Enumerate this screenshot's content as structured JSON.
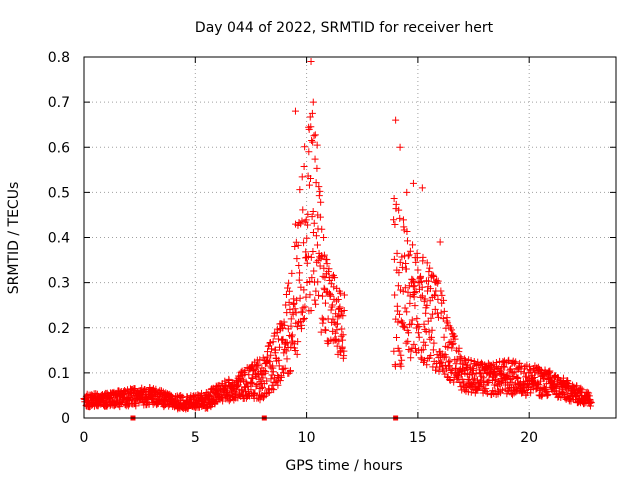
{
  "chart_data": {
    "type": "scatter",
    "title": "Day 044 of 2022, SRMTID for receiver hert",
    "xlabel": "GPS time / hours",
    "ylabel": "SRMTID / TECUs",
    "xlim": [
      0,
      23.9
    ],
    "ylim": [
      0,
      0.8
    ],
    "xticks": [
      0,
      5,
      10,
      15,
      20
    ],
    "xtick_labels": [
      "0",
      "5",
      "10",
      "15",
      "20"
    ],
    "yticks": [
      0,
      0.1,
      0.2,
      0.3,
      0.4,
      0.5,
      0.6,
      0.7,
      0.8
    ],
    "ytick_labels": [
      "0",
      "0.1",
      "0.2",
      "0.3",
      "0.4",
      "0.5",
      "0.6",
      "0.7",
      "0.8"
    ],
    "grid": true,
    "marker": "+",
    "marker_color": "#ff0000",
    "series": [
      {
        "name": "SRMTID",
        "color": "#ff0000",
        "gaps": [
          [
            11.7,
            13.9
          ]
        ],
        "profile": [
          [
            0.0,
            0.04,
            0.015
          ],
          [
            1.0,
            0.04,
            0.015
          ],
          [
            2.0,
            0.045,
            0.02
          ],
          [
            3.0,
            0.05,
            0.02
          ],
          [
            4.0,
            0.035,
            0.015
          ],
          [
            5.0,
            0.035,
            0.015
          ],
          [
            5.6,
            0.04,
            0.02
          ],
          [
            6.0,
            0.055,
            0.02
          ],
          [
            7.0,
            0.07,
            0.03
          ],
          [
            7.5,
            0.08,
            0.04
          ],
          [
            8.0,
            0.09,
            0.05
          ],
          [
            8.5,
            0.12,
            0.06
          ],
          [
            9.0,
            0.16,
            0.08
          ],
          [
            9.5,
            0.28,
            0.16
          ],
          [
            10.0,
            0.42,
            0.22
          ],
          [
            10.3,
            0.48,
            0.24
          ],
          [
            10.6,
            0.35,
            0.18
          ],
          [
            11.0,
            0.26,
            0.1
          ],
          [
            11.5,
            0.2,
            0.08
          ],
          [
            14.0,
            0.3,
            0.2
          ],
          [
            14.5,
            0.28,
            0.15
          ],
          [
            15.0,
            0.24,
            0.13
          ],
          [
            15.5,
            0.23,
            0.12
          ],
          [
            16.0,
            0.2,
            0.1
          ],
          [
            16.5,
            0.14,
            0.06
          ],
          [
            17.0,
            0.1,
            0.04
          ],
          [
            18.0,
            0.085,
            0.035
          ],
          [
            19.0,
            0.09,
            0.04
          ],
          [
            20.0,
            0.085,
            0.035
          ],
          [
            21.0,
            0.075,
            0.03
          ],
          [
            22.0,
            0.055,
            0.02
          ],
          [
            22.8,
            0.04,
            0.015
          ]
        ],
        "peaks": [
          [
            9.5,
            0.68
          ],
          [
            10.1,
            0.59
          ],
          [
            10.2,
            0.79
          ],
          [
            10.3,
            0.7
          ],
          [
            10.5,
            0.45
          ],
          [
            14.0,
            0.66
          ],
          [
            14.2,
            0.6
          ],
          [
            14.5,
            0.5
          ],
          [
            14.8,
            0.52
          ],
          [
            15.2,
            0.51
          ],
          [
            16.0,
            0.39
          ]
        ],
        "baseline_markers_x": [
          2.2,
          8.1,
          14.0
        ]
      }
    ]
  }
}
